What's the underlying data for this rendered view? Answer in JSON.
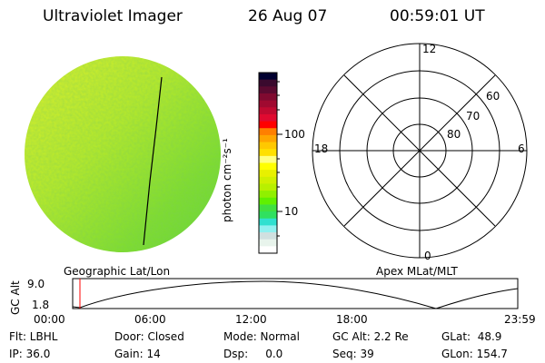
{
  "header": {
    "title": "Ultraviolet Imager",
    "date": "26 Aug 07",
    "time": "00:59:01 UT"
  },
  "colorbar": {
    "label": "photon cm⁻²s⁻¹",
    "tick_100": "100",
    "tick_10": "10",
    "colors": [
      "#000030",
      "#3a0a2e",
      "#5a0a30",
      "#800a30",
      "#a00a30",
      "#c00a30",
      "#e00a30",
      "#ff0000",
      "#ff7f00",
      "#ffa500",
      "#ffc800",
      "#ffe000",
      "#ffff80",
      "#ffff00",
      "#e8f000",
      "#d0f000",
      "#b8f000",
      "#90f000",
      "#60f000",
      "#40e040",
      "#30e060",
      "#30e0d0",
      "#90f0f0",
      "#d0e0e0",
      "#e8f4ec",
      "#ffffff"
    ]
  },
  "polar": {
    "mlt_12": "12",
    "mlt_18": "18",
    "mlt_6": "6",
    "mlt_0": "0",
    "lat_60": "60",
    "lat_70": "70",
    "lat_80": "80"
  },
  "timeline": {
    "left_label": "Geographic Lat/Lon",
    "right_label": "Apex MLat/MLT",
    "ylabel": "GC Alt",
    "y_max": "9.0",
    "y_min": "1.8",
    "x_ticks": [
      "00:00",
      "06:00",
      "12:00",
      "18:00",
      "23:59"
    ],
    "marker_color": "#ff0000"
  },
  "info": {
    "flt": "Flt: LBHL",
    "door": "Door: Closed",
    "mode": "Mode: Normal",
    "gcalt": "GC Alt: 2.2 Re",
    "glat": "GLat:  48.9",
    "ip": "IP: 36.0",
    "gain": "Gain: 14",
    "dsp": "Dsp:     0.0",
    "seq": "Seq: 39",
    "glon": "GLon: 154.7"
  }
}
